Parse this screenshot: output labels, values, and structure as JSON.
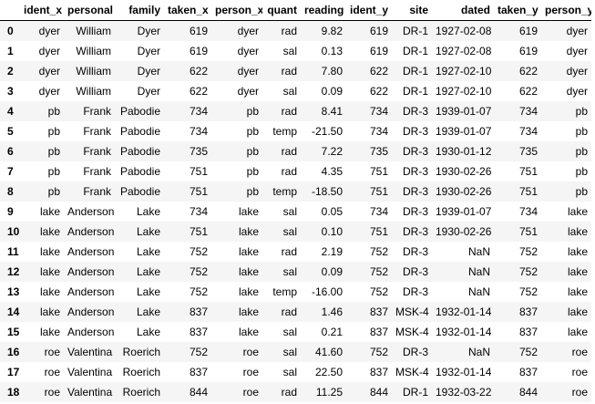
{
  "columns": [
    "",
    "ident_x",
    "personal",
    "family",
    "taken_x",
    "person_x",
    "quant",
    "reading",
    "ident_y",
    "site",
    "dated",
    "taken_y",
    "person_y"
  ],
  "rows": [
    [
      "0",
      "dyer",
      "William",
      "Dyer",
      "619",
      "dyer",
      "rad",
      "9.82",
      "619",
      "DR-1",
      "1927-02-08",
      "619",
      "dyer"
    ],
    [
      "1",
      "dyer",
      "William",
      "Dyer",
      "619",
      "dyer",
      "sal",
      "0.13",
      "619",
      "DR-1",
      "1927-02-08",
      "619",
      "dyer"
    ],
    [
      "2",
      "dyer",
      "William",
      "Dyer",
      "622",
      "dyer",
      "rad",
      "7.80",
      "622",
      "DR-1",
      "1927-02-10",
      "622",
      "dyer"
    ],
    [
      "3",
      "dyer",
      "William",
      "Dyer",
      "622",
      "dyer",
      "sal",
      "0.09",
      "622",
      "DR-1",
      "1927-02-10",
      "622",
      "dyer"
    ],
    [
      "4",
      "pb",
      "Frank",
      "Pabodie",
      "734",
      "pb",
      "rad",
      "8.41",
      "734",
      "DR-3",
      "1939-01-07",
      "734",
      "pb"
    ],
    [
      "5",
      "pb",
      "Frank",
      "Pabodie",
      "734",
      "pb",
      "temp",
      "-21.50",
      "734",
      "DR-3",
      "1939-01-07",
      "734",
      "pb"
    ],
    [
      "6",
      "pb",
      "Frank",
      "Pabodie",
      "735",
      "pb",
      "rad",
      "7.22",
      "735",
      "DR-3",
      "1930-01-12",
      "735",
      "pb"
    ],
    [
      "7",
      "pb",
      "Frank",
      "Pabodie",
      "751",
      "pb",
      "rad",
      "4.35",
      "751",
      "DR-3",
      "1930-02-26",
      "751",
      "pb"
    ],
    [
      "8",
      "pb",
      "Frank",
      "Pabodie",
      "751",
      "pb",
      "temp",
      "-18.50",
      "751",
      "DR-3",
      "1930-02-26",
      "751",
      "pb"
    ],
    [
      "9",
      "lake",
      "Anderson",
      "Lake",
      "734",
      "lake",
      "sal",
      "0.05",
      "734",
      "DR-3",
      "1939-01-07",
      "734",
      "lake"
    ],
    [
      "10",
      "lake",
      "Anderson",
      "Lake",
      "751",
      "lake",
      "sal",
      "0.10",
      "751",
      "DR-3",
      "1930-02-26",
      "751",
      "lake"
    ],
    [
      "11",
      "lake",
      "Anderson",
      "Lake",
      "752",
      "lake",
      "rad",
      "2.19",
      "752",
      "DR-3",
      "NaN",
      "752",
      "lake"
    ],
    [
      "12",
      "lake",
      "Anderson",
      "Lake",
      "752",
      "lake",
      "sal",
      "0.09",
      "752",
      "DR-3",
      "NaN",
      "752",
      "lake"
    ],
    [
      "13",
      "lake",
      "Anderson",
      "Lake",
      "752",
      "lake",
      "temp",
      "-16.00",
      "752",
      "DR-3",
      "NaN",
      "752",
      "lake"
    ],
    [
      "14",
      "lake",
      "Anderson",
      "Lake",
      "837",
      "lake",
      "rad",
      "1.46",
      "837",
      "MSK-4",
      "1932-01-14",
      "837",
      "lake"
    ],
    [
      "15",
      "lake",
      "Anderson",
      "Lake",
      "837",
      "lake",
      "sal",
      "0.21",
      "837",
      "MSK-4",
      "1932-01-14",
      "837",
      "lake"
    ],
    [
      "16",
      "roe",
      "Valentina",
      "Roerich",
      "752",
      "roe",
      "sal",
      "41.60",
      "752",
      "DR-3",
      "NaN",
      "752",
      "roe"
    ],
    [
      "17",
      "roe",
      "Valentina",
      "Roerich",
      "837",
      "roe",
      "sal",
      "22.50",
      "837",
      "MSK-4",
      "1932-01-14",
      "837",
      "roe"
    ],
    [
      "18",
      "roe",
      "Valentina",
      "Roerich",
      "844",
      "roe",
      "rad",
      "11.25",
      "844",
      "DR-1",
      "1932-03-22",
      "844",
      "roe"
    ]
  ]
}
